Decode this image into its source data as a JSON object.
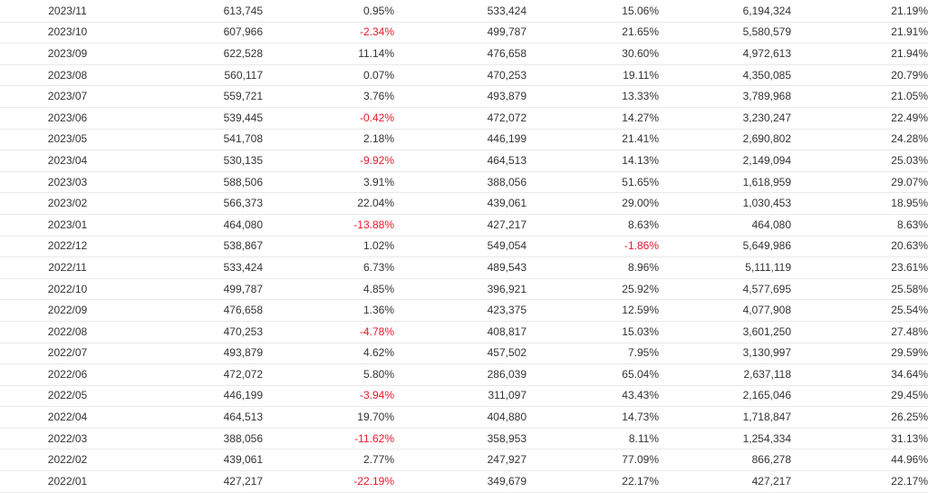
{
  "colors": {
    "negative": "#e8182c",
    "text": "#333333",
    "row_border": "#e9e9e9"
  },
  "table": {
    "rows": [
      [
        "2023/11",
        "613,745",
        "0.95%",
        "533,424",
        "15.06%",
        "6,194,324",
        "21.19%"
      ],
      [
        "2023/10",
        "607,966",
        "-2.34%",
        "499,787",
        "21.65%",
        "5,580,579",
        "21.91%"
      ],
      [
        "2023/09",
        "622,528",
        "11.14%",
        "476,658",
        "30.60%",
        "4,972,613",
        "21.94%"
      ],
      [
        "2023/08",
        "560,117",
        "0.07%",
        "470,253",
        "19.11%",
        "4,350,085",
        "20.79%"
      ],
      [
        "2023/07",
        "559,721",
        "3.76%",
        "493,879",
        "13.33%",
        "3,789,968",
        "21.05%"
      ],
      [
        "2023/06",
        "539,445",
        "-0.42%",
        "472,072",
        "14.27%",
        "3,230,247",
        "22.49%"
      ],
      [
        "2023/05",
        "541,708",
        "2.18%",
        "446,199",
        "21.41%",
        "2,690,802",
        "24.28%"
      ],
      [
        "2023/04",
        "530,135",
        "-9.92%",
        "464,513",
        "14.13%",
        "2,149,094",
        "25.03%"
      ],
      [
        "2023/03",
        "588,506",
        "3.91%",
        "388,056",
        "51.65%",
        "1,618,959",
        "29.07%"
      ],
      [
        "2023/02",
        "566,373",
        "22.04%",
        "439,061",
        "29.00%",
        "1,030,453",
        "18.95%"
      ],
      [
        "2023/01",
        "464,080",
        "-13.88%",
        "427,217",
        "8.63%",
        "464,080",
        "8.63%"
      ],
      [
        "2022/12",
        "538,867",
        "1.02%",
        "549,054",
        "-1.86%",
        "5,649,986",
        "20.63%"
      ],
      [
        "2022/11",
        "533,424",
        "6.73%",
        "489,543",
        "8.96%",
        "5,111,119",
        "23.61%"
      ],
      [
        "2022/10",
        "499,787",
        "4.85%",
        "396,921",
        "25.92%",
        "4,577,695",
        "25.58%"
      ],
      [
        "2022/09",
        "476,658",
        "1.36%",
        "423,375",
        "12.59%",
        "4,077,908",
        "25.54%"
      ],
      [
        "2022/08",
        "470,253",
        "-4.78%",
        "408,817",
        "15.03%",
        "3,601,250",
        "27.48%"
      ],
      [
        "2022/07",
        "493,879",
        "4.62%",
        "457,502",
        "7.95%",
        "3,130,997",
        "29.59%"
      ],
      [
        "2022/06",
        "472,072",
        "5.80%",
        "286,039",
        "65.04%",
        "2,637,118",
        "34.64%"
      ],
      [
        "2022/05",
        "446,199",
        "-3.94%",
        "311,097",
        "43.43%",
        "2,165,046",
        "29.45%"
      ],
      [
        "2022/04",
        "464,513",
        "19.70%",
        "404,880",
        "14.73%",
        "1,718,847",
        "26.25%"
      ],
      [
        "2022/03",
        "388,056",
        "-11.62%",
        "358,953",
        "8.11%",
        "1,254,334",
        "31.13%"
      ],
      [
        "2022/02",
        "439,061",
        "2.77%",
        "247,927",
        "77.09%",
        "866,278",
        "44.96%"
      ],
      [
        "2022/01",
        "427,217",
        "-22.19%",
        "349,679",
        "22.17%",
        "427,217",
        "22.17%"
      ]
    ]
  }
}
